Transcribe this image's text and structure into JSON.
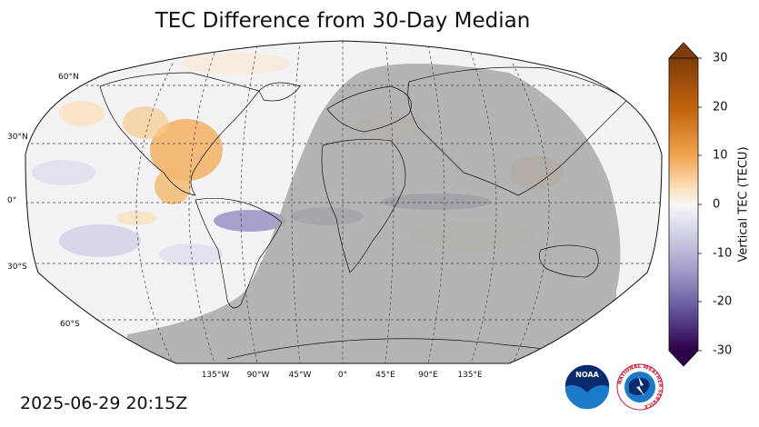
{
  "title": "TEC Difference from 30-Day Median",
  "timestamp": "2025-06-29 20:15Z",
  "lat_labels": [
    "60°N",
    "30°N",
    "0°",
    "30°S",
    "60°S"
  ],
  "lon_labels": [
    "135°W",
    "90°W",
    "45°W",
    "0°",
    "45°E",
    "90°E",
    "135°E"
  ],
  "colorbar": {
    "label": "Vertical TEC (TECU)",
    "ticks": [
      "30",
      "20",
      "10",
      "0",
      "-10",
      "-20",
      "-30"
    ],
    "min": -30,
    "max": 30,
    "colors": {
      "max": "#7f3b08",
      "high": "#e08214",
      "low_pos": "#fdd9a7",
      "zero": "#f7f7f7",
      "low_neg": "#d8daeb",
      "mid_neg": "#8073ac",
      "min": "#2d004b"
    }
  },
  "night_shading_color": "#a8a8a8",
  "logos": {
    "noaa_text": "NOAA",
    "nws_text": "NATIONAL WEATHER SERVICE"
  }
}
